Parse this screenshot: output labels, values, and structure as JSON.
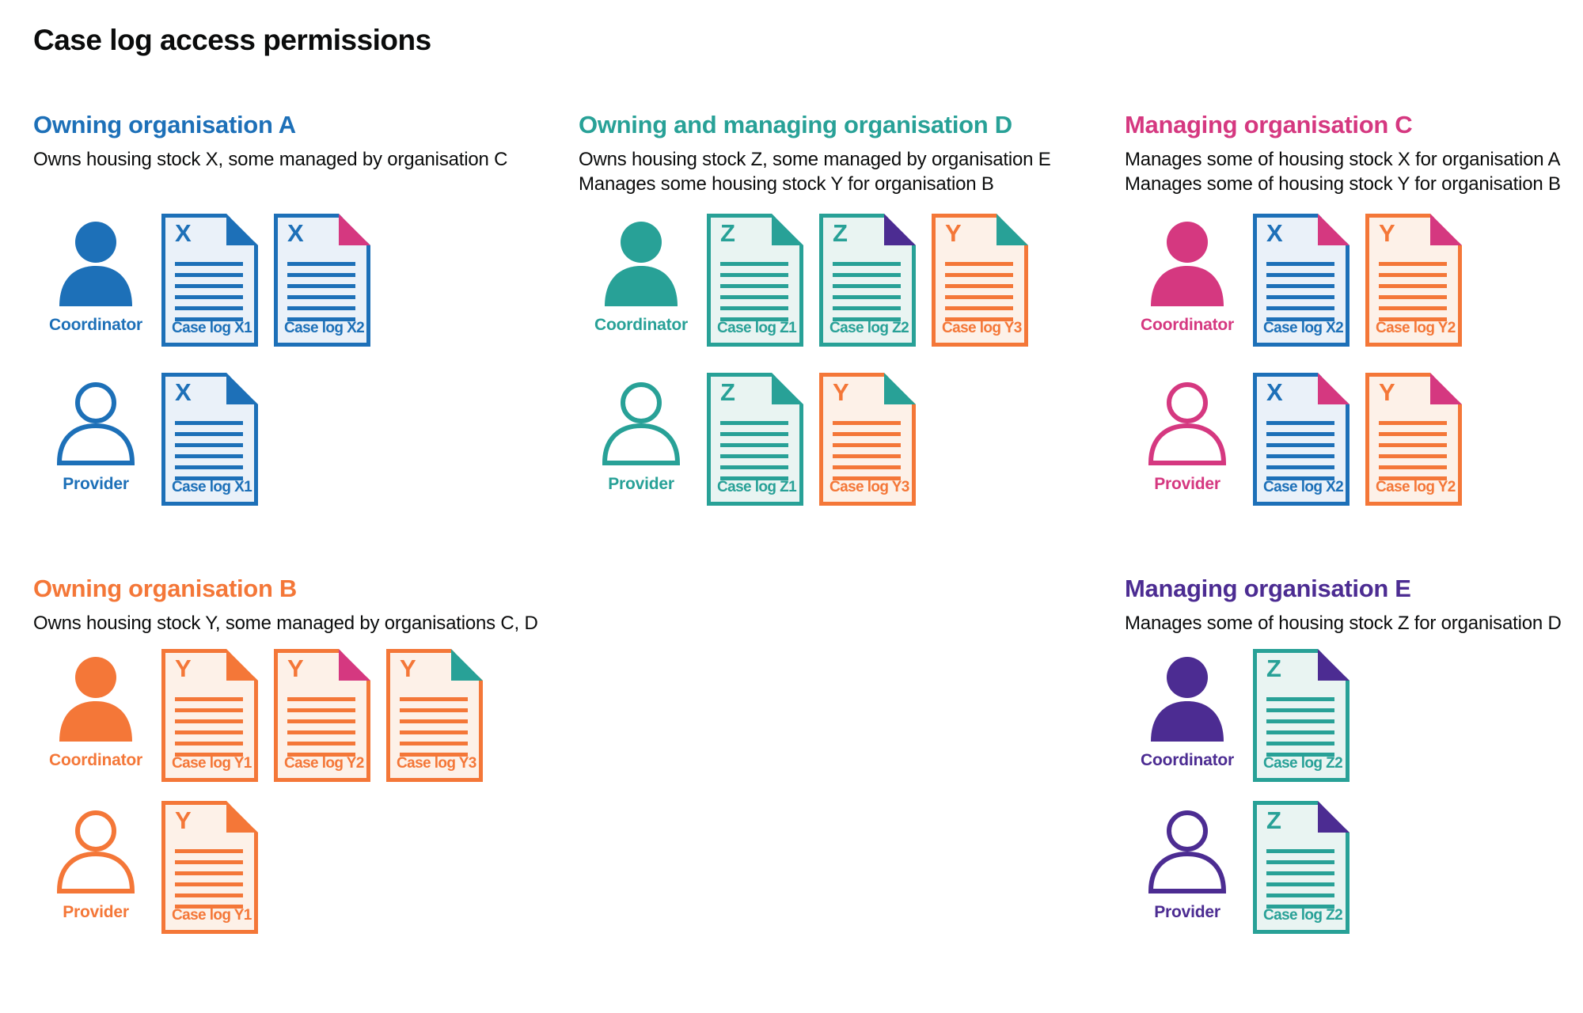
{
  "page": {
    "title": "Case log access permissions"
  },
  "palette": {
    "blue": "#1d70b8",
    "teal": "#28a197",
    "pink": "#d53880",
    "orange": "#f47738",
    "purple": "#4c2c92",
    "text": "#0b0c0c",
    "background": "#ffffff"
  },
  "tints": {
    "blue": "#eaf1f9",
    "teal": "#e9f4f2",
    "orange": "#fdf1e8"
  },
  "roles": {
    "coordinator": {
      "label": "Coordinator",
      "icon": "person-filled-icon"
    },
    "provider": {
      "label": "Provider",
      "icon": "person-outline-icon"
    }
  },
  "icons": {
    "folded-corner": "document-folded-corner-triangle"
  },
  "sections": [
    {
      "id": "org-a",
      "heading": "Owning organisation A",
      "color": "blue",
      "description": [
        "Owns housing stock X, some managed by organisation C"
      ],
      "rows": [
        {
          "role": "coordinator",
          "docs": [
            {
              "letter": "X",
              "label": "Case log X1",
              "doc_color": "blue",
              "fold_color": "blue"
            },
            {
              "letter": "X",
              "label": "Case log X2",
              "doc_color": "blue",
              "fold_color": "pink"
            }
          ]
        },
        {
          "role": "provider",
          "docs": [
            {
              "letter": "X",
              "label": "Case log X1",
              "doc_color": "blue",
              "fold_color": "blue"
            }
          ]
        }
      ]
    },
    {
      "id": "org-d",
      "heading": "Owning and managing organisation D",
      "color": "teal",
      "description": [
        "Owns housing stock Z, some managed by organisation E",
        "Manages some housing stock Y for organisation B"
      ],
      "rows": [
        {
          "role": "coordinator",
          "docs": [
            {
              "letter": "Z",
              "label": "Case log Z1",
              "doc_color": "teal",
              "fold_color": "teal"
            },
            {
              "letter": "Z",
              "label": "Case log Z2",
              "doc_color": "teal",
              "fold_color": "purple"
            },
            {
              "letter": "Y",
              "label": "Case log Y3",
              "doc_color": "orange",
              "fold_color": "teal"
            }
          ]
        },
        {
          "role": "provider",
          "docs": [
            {
              "letter": "Z",
              "label": "Case log Z1",
              "doc_color": "teal",
              "fold_color": "teal"
            },
            {
              "letter": "Y",
              "label": "Case log Y3",
              "doc_color": "orange",
              "fold_color": "teal"
            }
          ]
        }
      ]
    },
    {
      "id": "org-c",
      "heading": "Managing organisation C",
      "color": "pink",
      "description": [
        "Manages some of housing stock X for organisation A",
        "Manages some of housing stock Y for organisation B"
      ],
      "rows": [
        {
          "role": "coordinator",
          "docs": [
            {
              "letter": "X",
              "label": "Case log X2",
              "doc_color": "blue",
              "fold_color": "pink"
            },
            {
              "letter": "Y",
              "label": "Case log Y2",
              "doc_color": "orange",
              "fold_color": "pink"
            }
          ]
        },
        {
          "role": "provider",
          "docs": [
            {
              "letter": "X",
              "label": "Case log X2",
              "doc_color": "blue",
              "fold_color": "pink"
            },
            {
              "letter": "Y",
              "label": "Case log Y2",
              "doc_color": "orange",
              "fold_color": "pink"
            }
          ]
        }
      ]
    },
    {
      "id": "org-b",
      "heading": "Owning organisation B",
      "color": "orange",
      "description": [
        "Owns housing stock Y, some managed by organisations C, D"
      ],
      "rows": [
        {
          "role": "coordinator",
          "docs": [
            {
              "letter": "Y",
              "label": "Case log Y1",
              "doc_color": "orange",
              "fold_color": "orange"
            },
            {
              "letter": "Y",
              "label": "Case log Y2",
              "doc_color": "orange",
              "fold_color": "pink"
            },
            {
              "letter": "Y",
              "label": "Case log Y3",
              "doc_color": "orange",
              "fold_color": "teal"
            }
          ]
        },
        {
          "role": "provider",
          "docs": [
            {
              "letter": "Y",
              "label": "Case log Y1",
              "doc_color": "orange",
              "fold_color": "orange"
            }
          ]
        }
      ]
    },
    {
      "id": "org-e",
      "heading": "Managing organisation E",
      "color": "purple",
      "description": [
        "Manages some of housing stock Z for organisation D"
      ],
      "rows": [
        {
          "role": "coordinator",
          "docs": [
            {
              "letter": "Z",
              "label": "Case log Z2",
              "doc_color": "teal",
              "fold_color": "purple"
            }
          ]
        },
        {
          "role": "provider",
          "docs": [
            {
              "letter": "Z",
              "label": "Case log Z2",
              "doc_color": "teal",
              "fold_color": "purple"
            }
          ]
        }
      ]
    }
  ]
}
